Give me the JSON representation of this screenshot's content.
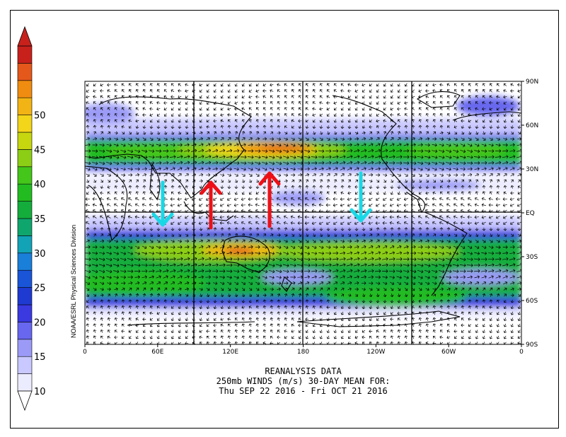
{
  "colorbar": {
    "ticks": [
      "10",
      "15",
      "20",
      "25",
      "30",
      "35",
      "40",
      "45",
      "50"
    ],
    "colors": [
      "#ececff",
      "#c9c8ff",
      "#9b9bf7",
      "#6767ef",
      "#3a3ae0",
      "#1f3ad1",
      "#1a55d8",
      "#1a7fd9",
      "#13a3b7",
      "#0fa66d",
      "#14ad3c",
      "#22bc20",
      "#45c61a",
      "#8cce16",
      "#c6d70f",
      "#f3d51a",
      "#f2b414",
      "#f08c0f",
      "#e5581b",
      "#c8211c"
    ]
  },
  "map": {
    "lon_labels": [
      "0",
      "60E",
      "120E",
      "180",
      "120W",
      "60W",
      "0"
    ],
    "lat_labels": [
      "90N",
      "60N",
      "30N",
      "EQ",
      "30S",
      "60S",
      "90S"
    ],
    "credit": "NOAA/ESRL Physical Sciences Division",
    "arrows": [
      {
        "name": "cyan-arrow-indian-ocean",
        "color": "#19d8e6",
        "dir": "down"
      },
      {
        "name": "red-arrow-indonesia",
        "color": "#ee0f16",
        "dir": "up"
      },
      {
        "name": "red-arrow-west-pacific",
        "color": "#ee0f16",
        "dir": "up"
      },
      {
        "name": "cyan-arrow-east-pacific",
        "color": "#19d8e6",
        "dir": "down"
      }
    ]
  },
  "caption": {
    "line1": "REANALYSIS DATA",
    "line2": "250mb WINDS (m/s)   30-DAY MEAN FOR:",
    "line3": "Thu SEP 22 2016 - Fri OCT 21 2016"
  }
}
